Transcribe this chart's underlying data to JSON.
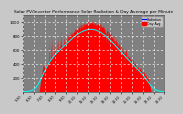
{
  "title": "Solar PV/Inverter Performance Solar Radiation & Day Average per Minute",
  "title_fontsize": 3.2,
  "title_color": "#000000",
  "bg_color": "#c8c8c8",
  "plot_bg_color": "#808080",
  "grid_color": "#ffffff",
  "area_color": "#ff0000",
  "area_edge_color": "#ff0000",
  "avg_line_color": "#00ffff",
  "legend_blue_color": "#0000ff",
  "legend_red_color": "#ff0000",
  "ylim": [
    0,
    1100
  ],
  "ytick_vals": [
    200,
    400,
    600,
    800,
    1000
  ],
  "ylabel_fontsize": 2.8,
  "xlabel_fontsize": 2.4,
  "num_points": 480
}
